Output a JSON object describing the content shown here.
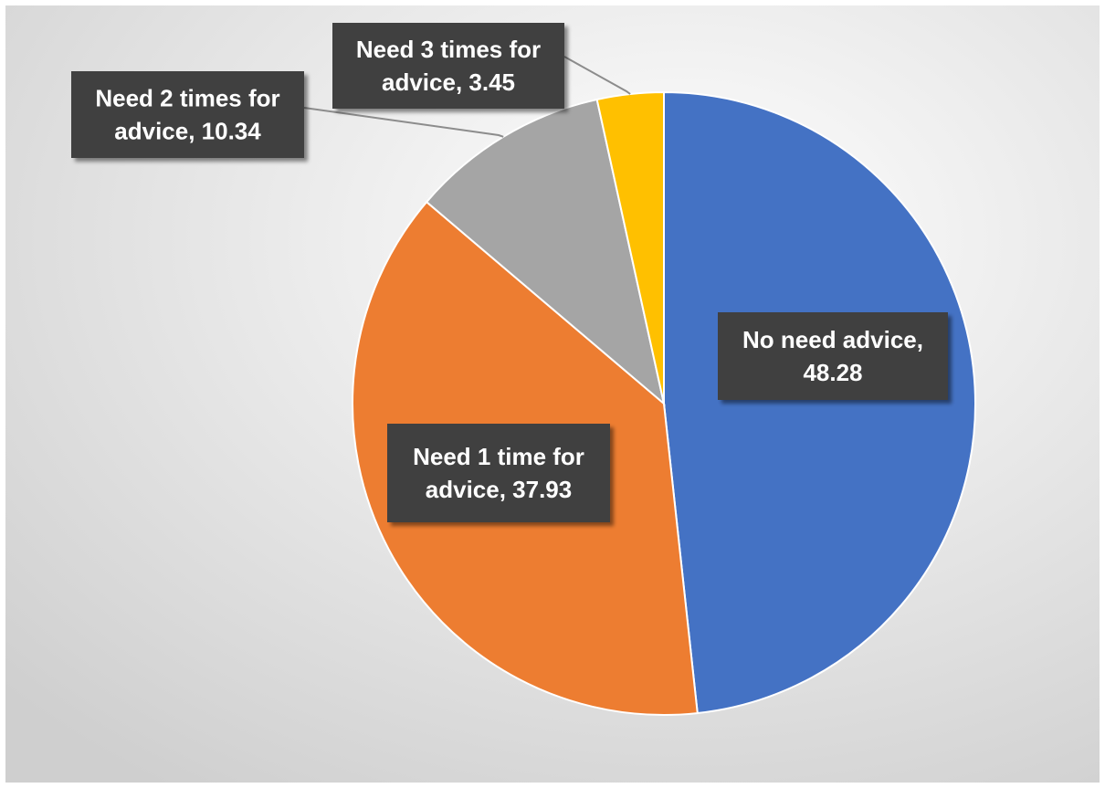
{
  "chart_data": {
    "type": "pie",
    "title": "",
    "start_angle_deg": 0,
    "direction": "clockwise",
    "slices": [
      {
        "name": "No need advice",
        "value": 48.28,
        "color": "#4472C4",
        "label_lines": [
          "No need advice,",
          "48.28"
        ]
      },
      {
        "name": "Need 1 time for advice",
        "value": 37.93,
        "color": "#ED7D31",
        "label_lines": [
          "Need 1 time for",
          "advice, 37.93"
        ]
      },
      {
        "name": "Need 2 times for advice",
        "value": 10.34,
        "color": "#A5A5A5",
        "label_lines": [
          "Need 2 times for",
          "advice, 10.34"
        ]
      },
      {
        "name": "Need 3 times for advice",
        "value": 3.45,
        "color": "#FFC000",
        "label_lines": [
          "Need 3 times for",
          "advice, 3.45"
        ]
      }
    ],
    "data_labels": {
      "background": "#404040",
      "text_color": "#FFFFFF",
      "leader_lines": true
    },
    "background_gradient": [
      "#FFFFFF",
      "#CFCFCF"
    ]
  }
}
